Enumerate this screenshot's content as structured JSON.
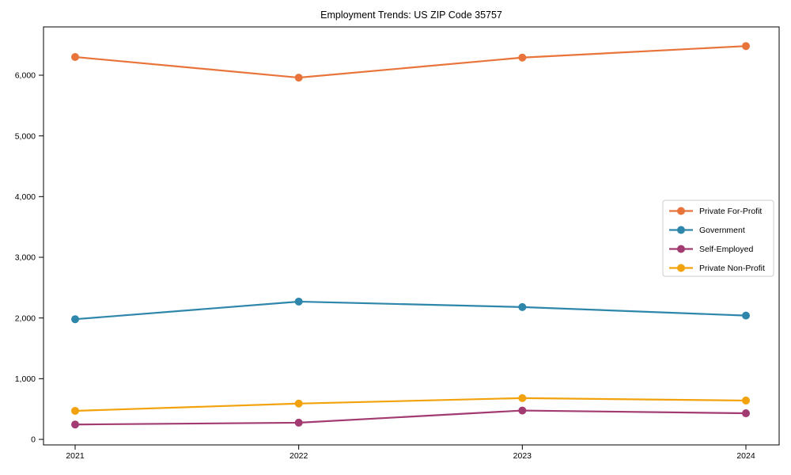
{
  "figure": {
    "background": "#ffffff",
    "frame_color": "#000000",
    "text_color": "#000000"
  },
  "chart_data": {
    "type": "line",
    "title": "Employment Trends: US ZIP Code 35757",
    "xlabel": "",
    "ylabel": "",
    "x_categories": [
      "2021",
      "2022",
      "2023",
      "2024"
    ],
    "series": [
      {
        "name": "Private For-Profit",
        "color": "#E8743B",
        "values": [
          6300,
          5960,
          6290,
          6480
        ]
      },
      {
        "name": "Government",
        "color": "#2E86AB",
        "values": [
          1980,
          2270,
          2180,
          2040
        ]
      },
      {
        "name": "Self-Employed",
        "color": "#A23B72",
        "values": [
          245,
          275,
          475,
          430
        ]
      },
      {
        "name": "Private Non-Profit",
        "color": "#F2A20C",
        "values": [
          470,
          590,
          680,
          640
        ]
      }
    ],
    "yticks": {
      "values": [
        0,
        1000,
        2000,
        3000,
        4000,
        5000,
        6000
      ],
      "labels": [
        "0",
        "1,000",
        "2,000",
        "3,000",
        "4,000",
        "5,000",
        "6,000"
      ]
    },
    "ylim": [
      -100,
      6780
    ],
    "grid": false,
    "marker": "circle",
    "legend": {
      "position": "center-right",
      "background": "#ffffff",
      "border_color": "#cccccc",
      "entries": [
        "Private For-Profit",
        "Government",
        "Self-Employed",
        "Private Non-Profit"
      ]
    }
  }
}
